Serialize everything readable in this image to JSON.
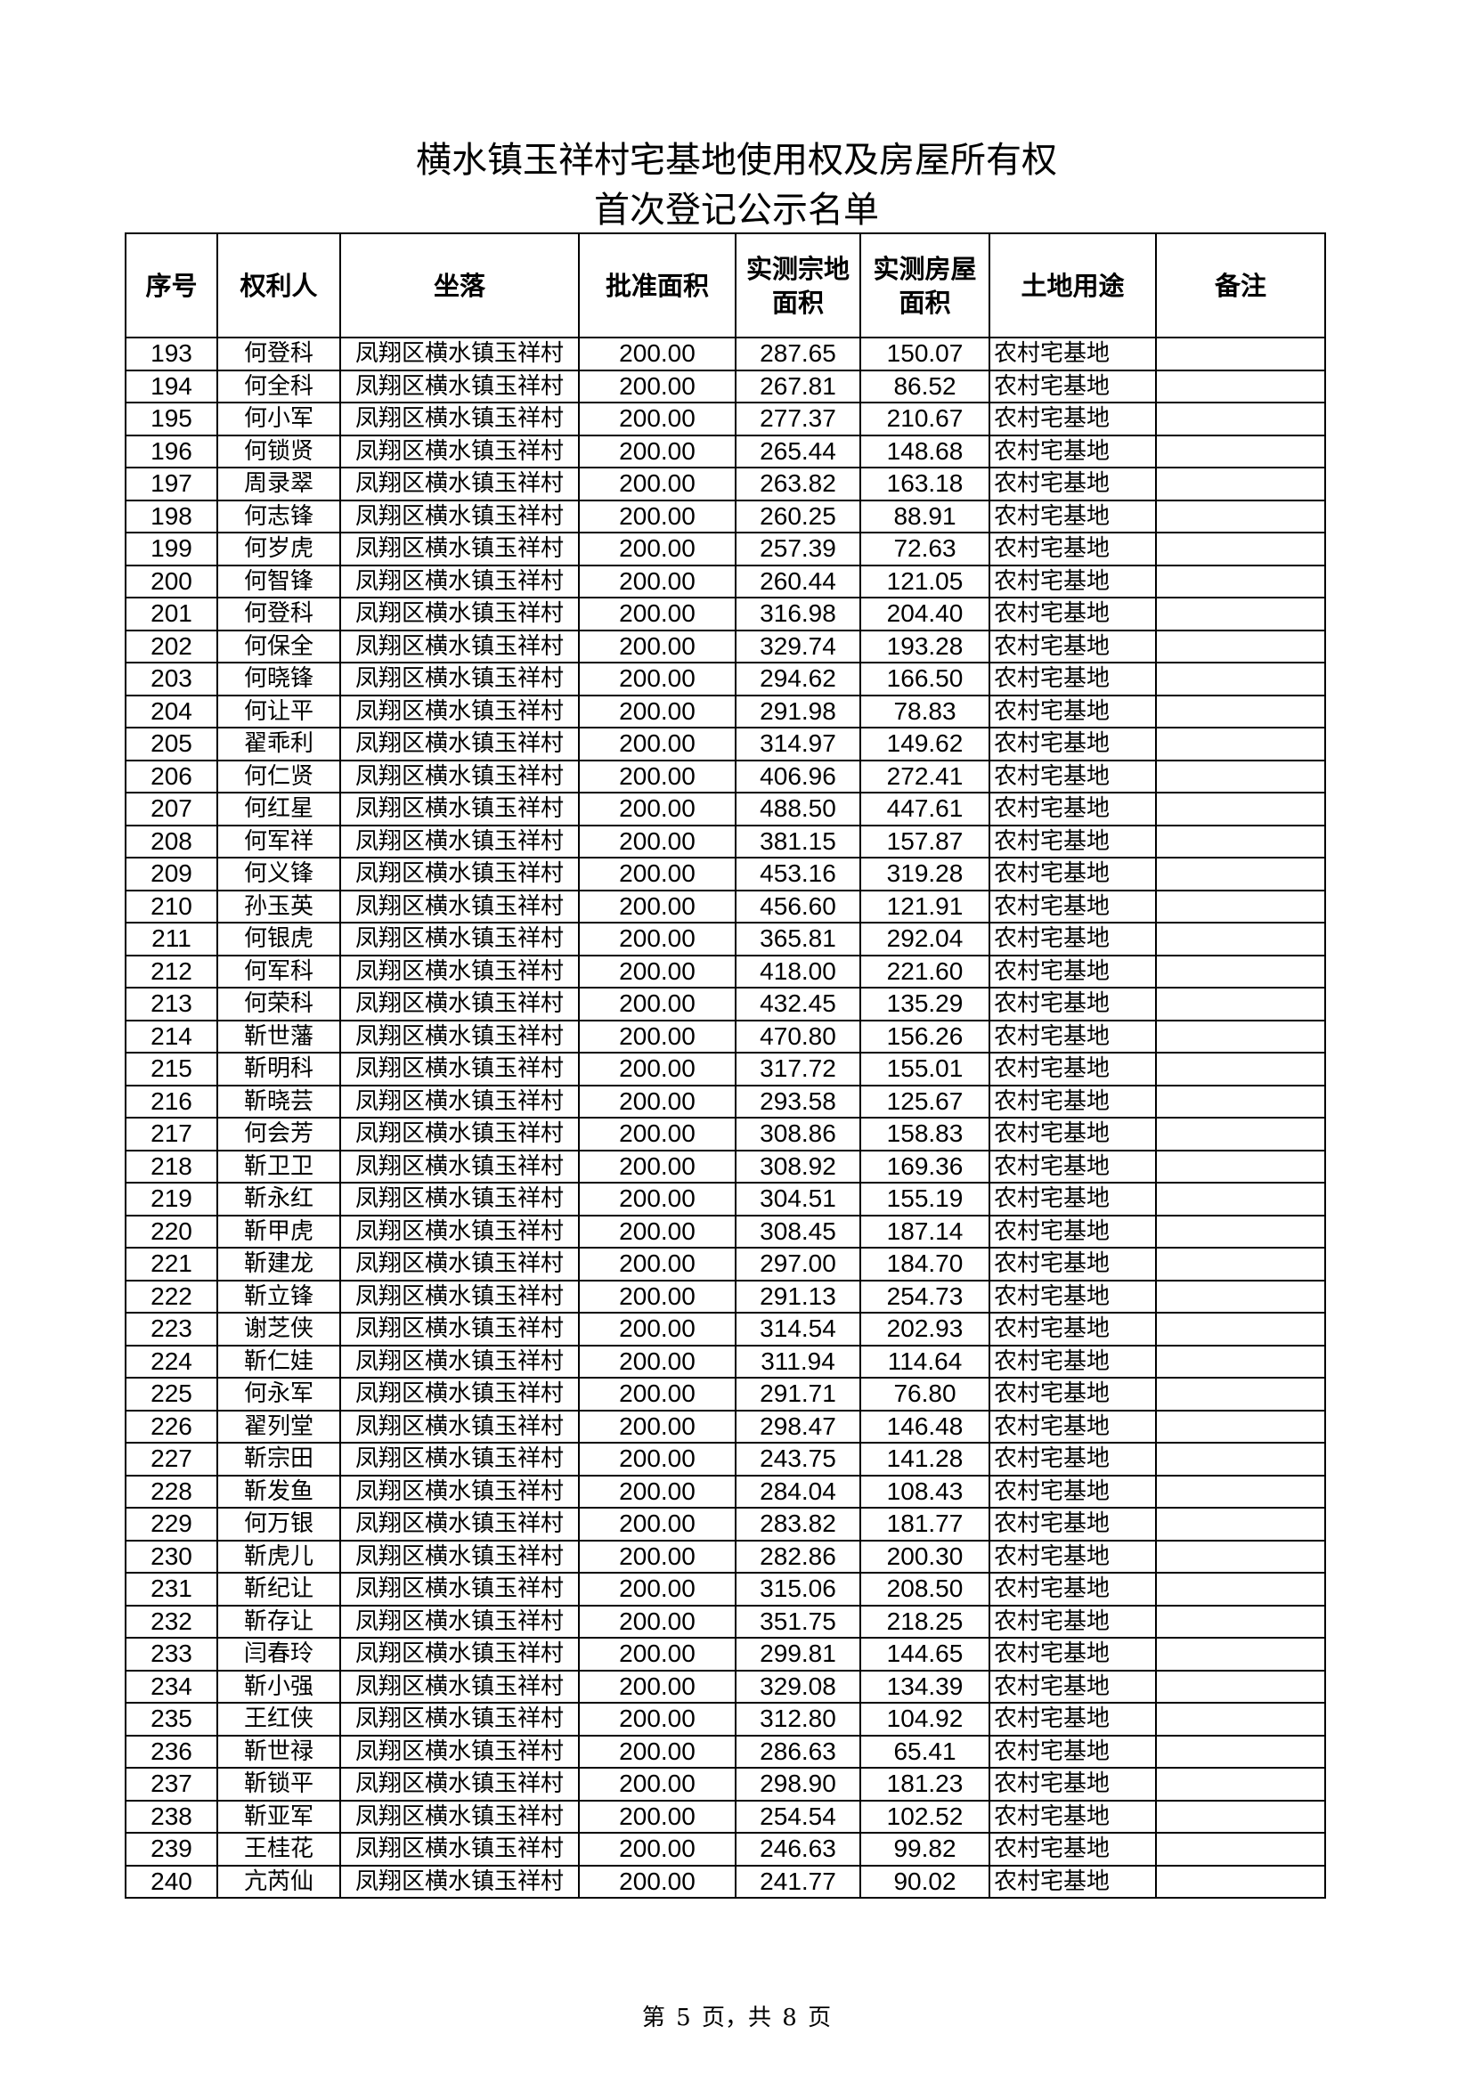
{
  "title": {
    "line1": "横水镇玉祥村宅基地使用权及房屋所有权",
    "line2": "首次登记公示名单"
  },
  "table": {
    "headers": [
      "序号",
      "权利人",
      "坐落",
      "批准面积",
      "实测宗地面积",
      "实测房屋面积",
      "土地用途",
      "备注"
    ],
    "rows": [
      [
        "193",
        "何登科",
        "凤翔区横水镇玉祥村",
        "200.00",
        "287.65",
        "150.07",
        "农村宅基地",
        ""
      ],
      [
        "194",
        "何全科",
        "凤翔区横水镇玉祥村",
        "200.00",
        "267.81",
        "86.52",
        "农村宅基地",
        ""
      ],
      [
        "195",
        "何小军",
        "凤翔区横水镇玉祥村",
        "200.00",
        "277.37",
        "210.67",
        "农村宅基地",
        ""
      ],
      [
        "196",
        "何锁贤",
        "凤翔区横水镇玉祥村",
        "200.00",
        "265.44",
        "148.68",
        "农村宅基地",
        ""
      ],
      [
        "197",
        "周录翠",
        "凤翔区横水镇玉祥村",
        "200.00",
        "263.82",
        "163.18",
        "农村宅基地",
        ""
      ],
      [
        "198",
        "何志锋",
        "凤翔区横水镇玉祥村",
        "200.00",
        "260.25",
        "88.91",
        "农村宅基地",
        ""
      ],
      [
        "199",
        "何岁虎",
        "凤翔区横水镇玉祥村",
        "200.00",
        "257.39",
        "72.63",
        "农村宅基地",
        ""
      ],
      [
        "200",
        "何智锋",
        "凤翔区横水镇玉祥村",
        "200.00",
        "260.44",
        "121.05",
        "农村宅基地",
        ""
      ],
      [
        "201",
        "何登科",
        "凤翔区横水镇玉祥村",
        "200.00",
        "316.98",
        "204.40",
        "农村宅基地",
        ""
      ],
      [
        "202",
        "何保全",
        "凤翔区横水镇玉祥村",
        "200.00",
        "329.74",
        "193.28",
        "农村宅基地",
        ""
      ],
      [
        "203",
        "何晓锋",
        "凤翔区横水镇玉祥村",
        "200.00",
        "294.62",
        "166.50",
        "农村宅基地",
        ""
      ],
      [
        "204",
        "何让平",
        "凤翔区横水镇玉祥村",
        "200.00",
        "291.98",
        "78.83",
        "农村宅基地",
        ""
      ],
      [
        "205",
        "翟乖利",
        "凤翔区横水镇玉祥村",
        "200.00",
        "314.97",
        "149.62",
        "农村宅基地",
        ""
      ],
      [
        "206",
        "何仁贤",
        "凤翔区横水镇玉祥村",
        "200.00",
        "406.96",
        "272.41",
        "农村宅基地",
        ""
      ],
      [
        "207",
        "何红星",
        "凤翔区横水镇玉祥村",
        "200.00",
        "488.50",
        "447.61",
        "农村宅基地",
        ""
      ],
      [
        "208",
        "何军祥",
        "凤翔区横水镇玉祥村",
        "200.00",
        "381.15",
        "157.87",
        "农村宅基地",
        ""
      ],
      [
        "209",
        "何义锋",
        "凤翔区横水镇玉祥村",
        "200.00",
        "453.16",
        "319.28",
        "农村宅基地",
        ""
      ],
      [
        "210",
        "孙玉英",
        "凤翔区横水镇玉祥村",
        "200.00",
        "456.60",
        "121.91",
        "农村宅基地",
        ""
      ],
      [
        "211",
        "何银虎",
        "凤翔区横水镇玉祥村",
        "200.00",
        "365.81",
        "292.04",
        "农村宅基地",
        ""
      ],
      [
        "212",
        "何军科",
        "凤翔区横水镇玉祥村",
        "200.00",
        "418.00",
        "221.60",
        "农村宅基地",
        ""
      ],
      [
        "213",
        "何荣科",
        "凤翔区横水镇玉祥村",
        "200.00",
        "432.45",
        "135.29",
        "农村宅基地",
        ""
      ],
      [
        "214",
        "靳世藩",
        "凤翔区横水镇玉祥村",
        "200.00",
        "470.80",
        "156.26",
        "农村宅基地",
        ""
      ],
      [
        "215",
        "靳明科",
        "凤翔区横水镇玉祥村",
        "200.00",
        "317.72",
        "155.01",
        "农村宅基地",
        ""
      ],
      [
        "216",
        "靳晓芸",
        "凤翔区横水镇玉祥村",
        "200.00",
        "293.58",
        "125.67",
        "农村宅基地",
        ""
      ],
      [
        "217",
        "何会芳",
        "凤翔区横水镇玉祥村",
        "200.00",
        "308.86",
        "158.83",
        "农村宅基地",
        ""
      ],
      [
        "218",
        "靳卫卫",
        "凤翔区横水镇玉祥村",
        "200.00",
        "308.92",
        "169.36",
        "农村宅基地",
        ""
      ],
      [
        "219",
        "靳永红",
        "凤翔区横水镇玉祥村",
        "200.00",
        "304.51",
        "155.19",
        "农村宅基地",
        ""
      ],
      [
        "220",
        "靳甲虎",
        "凤翔区横水镇玉祥村",
        "200.00",
        "308.45",
        "187.14",
        "农村宅基地",
        ""
      ],
      [
        "221",
        "靳建龙",
        "凤翔区横水镇玉祥村",
        "200.00",
        "297.00",
        "184.70",
        "农村宅基地",
        ""
      ],
      [
        "222",
        "靳立锋",
        "凤翔区横水镇玉祥村",
        "200.00",
        "291.13",
        "254.73",
        "农村宅基地",
        ""
      ],
      [
        "223",
        "谢芝侠",
        "凤翔区横水镇玉祥村",
        "200.00",
        "314.54",
        "202.93",
        "农村宅基地",
        ""
      ],
      [
        "224",
        "靳仁娃",
        "凤翔区横水镇玉祥村",
        "200.00",
        "311.94",
        "114.64",
        "农村宅基地",
        ""
      ],
      [
        "225",
        "何永军",
        "凤翔区横水镇玉祥村",
        "200.00",
        "291.71",
        "76.80",
        "农村宅基地",
        ""
      ],
      [
        "226",
        "翟列堂",
        "凤翔区横水镇玉祥村",
        "200.00",
        "298.47",
        "146.48",
        "农村宅基地",
        ""
      ],
      [
        "227",
        "靳宗田",
        "凤翔区横水镇玉祥村",
        "200.00",
        "243.75",
        "141.28",
        "农村宅基地",
        ""
      ],
      [
        "228",
        "靳发鱼",
        "凤翔区横水镇玉祥村",
        "200.00",
        "284.04",
        "108.43",
        "农村宅基地",
        ""
      ],
      [
        "229",
        "何万银",
        "凤翔区横水镇玉祥村",
        "200.00",
        "283.82",
        "181.77",
        "农村宅基地",
        ""
      ],
      [
        "230",
        "靳虎儿",
        "凤翔区横水镇玉祥村",
        "200.00",
        "282.86",
        "200.30",
        "农村宅基地",
        ""
      ],
      [
        "231",
        "靳纪让",
        "凤翔区横水镇玉祥村",
        "200.00",
        "315.06",
        "208.50",
        "农村宅基地",
        ""
      ],
      [
        "232",
        "靳存让",
        "凤翔区横水镇玉祥村",
        "200.00",
        "351.75",
        "218.25",
        "农村宅基地",
        ""
      ],
      [
        "233",
        "闫春玲",
        "凤翔区横水镇玉祥村",
        "200.00",
        "299.81",
        "144.65",
        "农村宅基地",
        ""
      ],
      [
        "234",
        "靳小强",
        "凤翔区横水镇玉祥村",
        "200.00",
        "329.08",
        "134.39",
        "农村宅基地",
        ""
      ],
      [
        "235",
        "王红侠",
        "凤翔区横水镇玉祥村",
        "200.00",
        "312.80",
        "104.92",
        "农村宅基地",
        ""
      ],
      [
        "236",
        "靳世禄",
        "凤翔区横水镇玉祥村",
        "200.00",
        "286.63",
        "65.41",
        "农村宅基地",
        ""
      ],
      [
        "237",
        "靳锁平",
        "凤翔区横水镇玉祥村",
        "200.00",
        "298.90",
        "181.23",
        "农村宅基地",
        ""
      ],
      [
        "238",
        "靳亚军",
        "凤翔区横水镇玉祥村",
        "200.00",
        "254.54",
        "102.52",
        "农村宅基地",
        ""
      ],
      [
        "239",
        "王桂花",
        "凤翔区横水镇玉祥村",
        "200.00",
        "246.63",
        "99.82",
        "农村宅基地",
        ""
      ],
      [
        "240",
        "亢芮仙",
        "凤翔区横水镇玉祥村",
        "200.00",
        "241.77",
        "90.02",
        "农村宅基地",
        ""
      ]
    ]
  },
  "footer": {
    "page_info": "第 5 页，共 8 页"
  }
}
